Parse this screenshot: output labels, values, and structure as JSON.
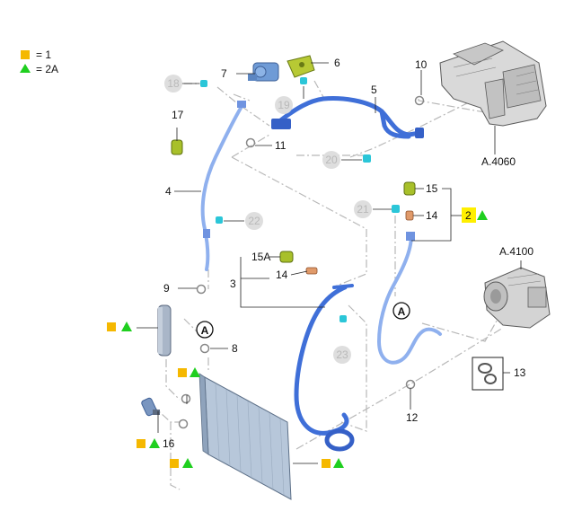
{
  "legend": {
    "square_text": "= 1",
    "triangle_text": "= 2A"
  },
  "colors": {
    "hose_blue": "#3f6fd8",
    "square_orange": "#f5b800",
    "triangle_green": "#1fcf1f",
    "highlight_yellow": "#ffef00",
    "ring_grey": "#c8c8c8"
  },
  "labels": {
    "p2": "2",
    "p3": "3",
    "p4": "4",
    "p5": "5",
    "p6": "6",
    "p7": "7",
    "p8": "8",
    "p9": "9",
    "p10": "10",
    "p11": "11",
    "p12": "12",
    "p13": "13",
    "p14a": "14",
    "p14b": "14",
    "p15": "15",
    "p15a": "15A",
    "p16": "16",
    "p17": "17",
    "p18": "18",
    "p19": "19",
    "p20": "20",
    "p21": "21",
    "p22": "22",
    "p23": "23",
    "ref_a4060": "A.4060",
    "ref_a4100": "A.4100",
    "callout_a1": "A",
    "callout_a2": "A"
  }
}
